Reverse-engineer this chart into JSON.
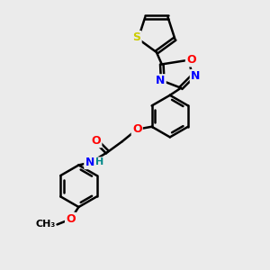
{
  "bg_color": "#ebebeb",
  "bond_color": "#000000",
  "bond_width": 1.8,
  "atom_colors": {
    "S": "#cccc00",
    "O": "#ff0000",
    "N": "#0000ff",
    "C": "#000000",
    "H": "#008888"
  },
  "font_size": 8,
  "fig_size": [
    3.0,
    3.0
  ],
  "dpi": 100
}
